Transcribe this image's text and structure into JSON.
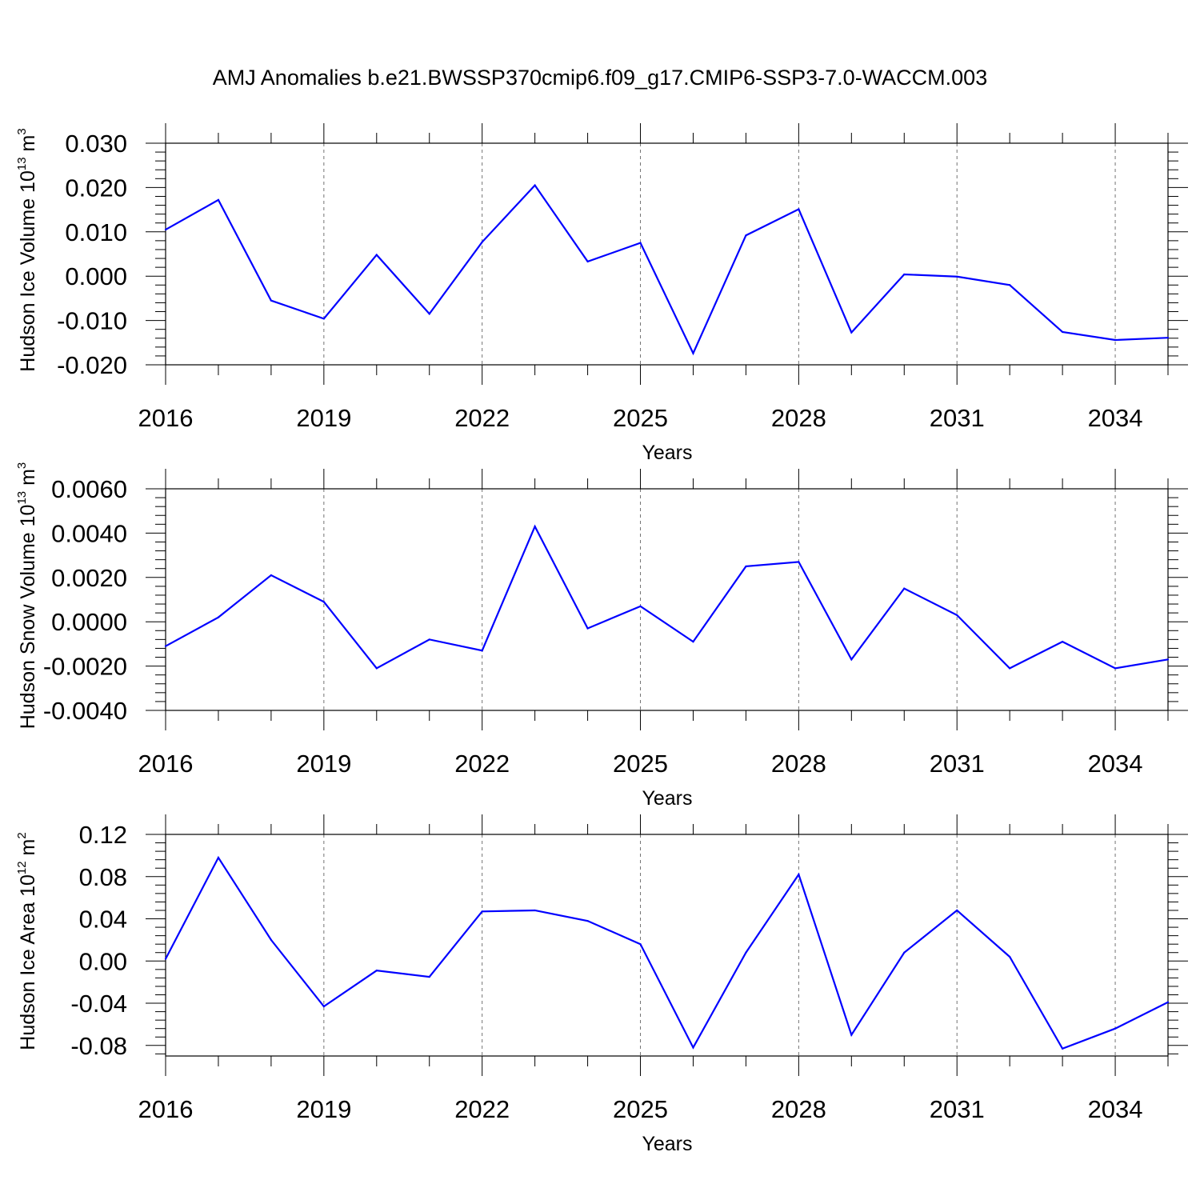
{
  "title": "AMJ Anomalies b.e21.BWSSP370cmip6.f09_g17.CMIP6-SSP3-7.0-WACCM.003",
  "chart_data": [
    {
      "type": "line",
      "ylabel": {
        "text": "Hudson Ice Volume 10",
        "sup": "13",
        "unit": " m",
        "unit_sup": "3"
      },
      "xlabel": "Years",
      "x": [
        2016,
        2017,
        2018,
        2019,
        2020,
        2021,
        2022,
        2023,
        2024,
        2025,
        2026,
        2027,
        2028,
        2029,
        2030,
        2031,
        2032,
        2033,
        2034,
        2035
      ],
      "xlim": [
        2016,
        2035
      ],
      "xticks": [
        2016,
        2019,
        2022,
        2025,
        2028,
        2031,
        2034
      ],
      "xtick_labels": [
        "2016",
        "2019",
        "2022",
        "2025",
        "2028",
        "2031",
        "2034"
      ],
      "ylim": [
        -0.02,
        0.03
      ],
      "yticks": [
        -0.02,
        -0.01,
        0.0,
        0.01,
        0.02,
        0.03
      ],
      "ytick_labels": [
        "-0.020",
        "-0.010",
        "0.000",
        "0.010",
        "0.020",
        "0.030"
      ],
      "series": [
        {
          "name": "Hudson Ice Volume",
          "color": "#0000ff",
          "values": [
            0.0105,
            0.0172,
            -0.0055,
            -0.0096,
            0.0048,
            -0.0085,
            0.0077,
            0.0205,
            0.0033,
            0.0075,
            -0.0174,
            0.0092,
            0.0151,
            -0.0127,
            0.0004,
            -0.0001,
            -0.002,
            -0.0126,
            -0.0144,
            -0.0139
          ]
        }
      ]
    },
    {
      "type": "line",
      "ylabel": {
        "text": "Hudson Snow Volume 10",
        "sup": "13",
        "unit": " m",
        "unit_sup": "3"
      },
      "xlabel": "Years",
      "x": [
        2016,
        2017,
        2018,
        2019,
        2020,
        2021,
        2022,
        2023,
        2024,
        2025,
        2026,
        2027,
        2028,
        2029,
        2030,
        2031,
        2032,
        2033,
        2034,
        2035
      ],
      "xlim": [
        2016,
        2035
      ],
      "xticks": [
        2016,
        2019,
        2022,
        2025,
        2028,
        2031,
        2034
      ],
      "xtick_labels": [
        "2016",
        "2019",
        "2022",
        "2025",
        "2028",
        "2031",
        "2034"
      ],
      "ylim": [
        -0.004,
        0.006
      ],
      "yticks": [
        -0.004,
        -0.002,
        0.0,
        0.002,
        0.004,
        0.006
      ],
      "ytick_labels": [
        "-0.0040",
        "-0.0020",
        "0.0000",
        "0.0020",
        "0.0040",
        "0.0060"
      ],
      "series": [
        {
          "name": "Hudson Snow Volume",
          "color": "#0000ff",
          "values": [
            -0.0011,
            0.0002,
            0.0021,
            0.0009,
            -0.0021,
            -0.0008,
            -0.0013,
            0.0043,
            -0.0003,
            0.0007,
            -0.0009,
            0.0025,
            0.0027,
            -0.0017,
            0.0015,
            0.0003,
            -0.0021,
            -0.0009,
            -0.0021,
            -0.0017
          ]
        }
      ]
    },
    {
      "type": "line",
      "ylabel": {
        "text": "Hudson Ice Area 10",
        "sup": "12",
        "unit": " m",
        "unit_sup": "2"
      },
      "xlabel": "Years",
      "x": [
        2016,
        2017,
        2018,
        2019,
        2020,
        2021,
        2022,
        2023,
        2024,
        2025,
        2026,
        2027,
        2028,
        2029,
        2030,
        2031,
        2032,
        2033,
        2034,
        2035
      ],
      "xlim": [
        2016,
        2035
      ],
      "xticks": [
        2016,
        2019,
        2022,
        2025,
        2028,
        2031,
        2034
      ],
      "xtick_labels": [
        "2016",
        "2019",
        "2022",
        "2025",
        "2028",
        "2031",
        "2034"
      ],
      "ylim": [
        -0.09,
        0.12
      ],
      "yticks": [
        -0.08,
        -0.04,
        0.0,
        0.04,
        0.08,
        0.12
      ],
      "ytick_labels": [
        "-0.08",
        "-0.04",
        "0.00",
        "0.04",
        "0.08",
        "0.12"
      ],
      "series": [
        {
          "name": "Hudson Ice Area",
          "color": "#0000ff",
          "values": [
            0.002,
            0.098,
            0.02,
            -0.043,
            -0.009,
            -0.015,
            0.047,
            0.048,
            0.038,
            0.016,
            -0.082,
            0.008,
            0.082,
            -0.07,
            0.008,
            0.048,
            0.004,
            -0.083,
            -0.064,
            -0.039
          ]
        }
      ]
    }
  ]
}
